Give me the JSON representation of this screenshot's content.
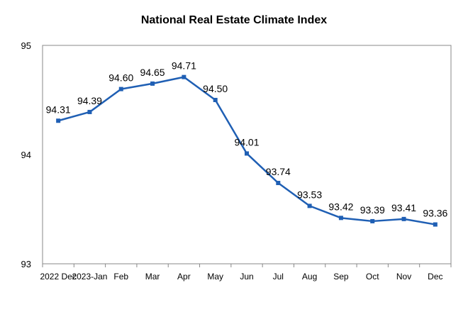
{
  "chart_data": {
    "type": "line",
    "title": "National Real Estate Climate Index",
    "xlabel": "",
    "ylabel": "",
    "categories": [
      "2022 Dec",
      "2023-Jan",
      "Feb",
      "Mar",
      "Apr",
      "May",
      "Jun",
      "Jul",
      "Aug",
      "Sep",
      "Oct",
      "Nov",
      "Dec"
    ],
    "series": [
      {
        "values": [
          94.31,
          94.39,
          94.6,
          94.65,
          94.71,
          94.5,
          94.01,
          93.74,
          93.53,
          93.42,
          93.39,
          93.41,
          93.36
        ],
        "labels": [
          "94.31",
          "94.39",
          "94.60",
          "94.65",
          "94.71",
          "94.50",
          "94.01",
          "93.74",
          "93.53",
          "93.42",
          "93.39",
          "93.41",
          "93.36"
        ]
      }
    ],
    "ylim": [
      93,
      95
    ],
    "yticks": [
      93,
      94,
      95
    ],
    "ytick_labels": [
      "93",
      "94",
      "95"
    ],
    "grid": false,
    "legend": "none",
    "colors": {
      "line": "#1f5fb4",
      "axis": "#888888"
    }
  }
}
